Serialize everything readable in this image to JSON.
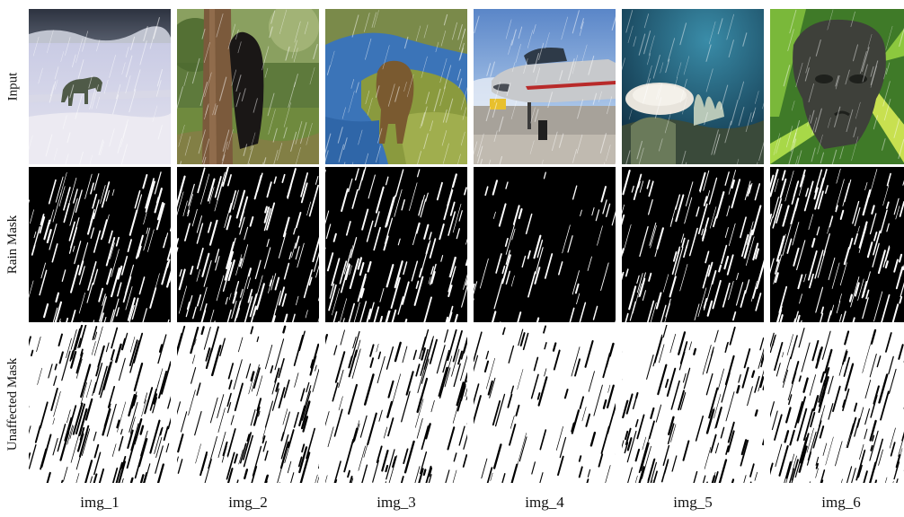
{
  "rows": {
    "input": "Input",
    "rain_mask": "Rain Mask",
    "unaffected_mask": "Unaffected Mask"
  },
  "columns": [
    {
      "label": "img_1",
      "scene": "polar bear walking on snow in rain"
    },
    {
      "label": "img_2",
      "scene": "black bear climbing tree trunk in rain"
    },
    {
      "label": "img_3",
      "scene": "brown bear on grassy bank beside water in rain"
    },
    {
      "label": "img_4",
      "scene": "fighter jet on tarmac in rain"
    },
    {
      "label": "img_5",
      "scene": "underwater coral reef in rain"
    },
    {
      "label": "img_6",
      "scene": "stone face statue among green leaves in rain"
    }
  ],
  "colors": {
    "rain_mask_background": "#000000",
    "rain_mask_streak": "#ffffff",
    "unaffected_mask_background": "#ffffff",
    "unaffected_mask_streak": "#000000"
  }
}
